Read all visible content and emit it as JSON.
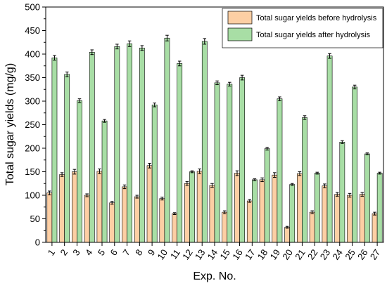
{
  "chart_data": {
    "type": "bar",
    "xlabel": "Exp. No.",
    "ylabel": "Total sugar yields (mg/g)",
    "ylim": [
      0,
      500
    ],
    "yticks": [
      0,
      50,
      100,
      150,
      200,
      250,
      300,
      350,
      400,
      450,
      500
    ],
    "categories": [
      "1",
      "2",
      "3",
      "4",
      "5",
      "6",
      "7",
      "8",
      "9",
      "10",
      "11",
      "12",
      "13",
      "14",
      "15",
      "16",
      "17",
      "18",
      "19",
      "20",
      "21",
      "22",
      "23",
      "24",
      "25",
      "26",
      "27"
    ],
    "legend_position": "top-right",
    "grid": false,
    "error_bars": true,
    "series": [
      {
        "name": "Total sugar yields before hydrolysis",
        "color": "#fdcfa4",
        "values": [
          105,
          144,
          150,
          100,
          151,
          84,
          118,
          97,
          163,
          93,
          61,
          125,
          151,
          121,
          64,
          147,
          88,
          133,
          143,
          32,
          146,
          64,
          120,
          102,
          100,
          102,
          61
        ],
        "errors": [
          4,
          4,
          5,
          3,
          5,
          3,
          4,
          3,
          5,
          3,
          2,
          4,
          5,
          4,
          3,
          5,
          3,
          4,
          5,
          2,
          4,
          3,
          4,
          4,
          4,
          4,
          3
        ]
      },
      {
        "name": "Total sugar yields after hydrolysis",
        "color": "#a8dea5",
        "values": [
          392,
          357,
          301,
          404,
          258,
          416,
          422,
          413,
          292,
          434,
          380,
          150,
          427,
          339,
          336,
          350,
          133,
          199,
          305,
          123,
          265,
          147,
          396,
          213,
          330,
          188,
          147
        ],
        "errors": [
          5,
          5,
          4,
          5,
          3,
          5,
          6,
          5,
          4,
          6,
          5,
          2,
          6,
          4,
          4,
          5,
          2,
          3,
          4,
          2,
          4,
          2,
          5,
          3,
          4,
          2,
          2
        ]
      }
    ]
  }
}
